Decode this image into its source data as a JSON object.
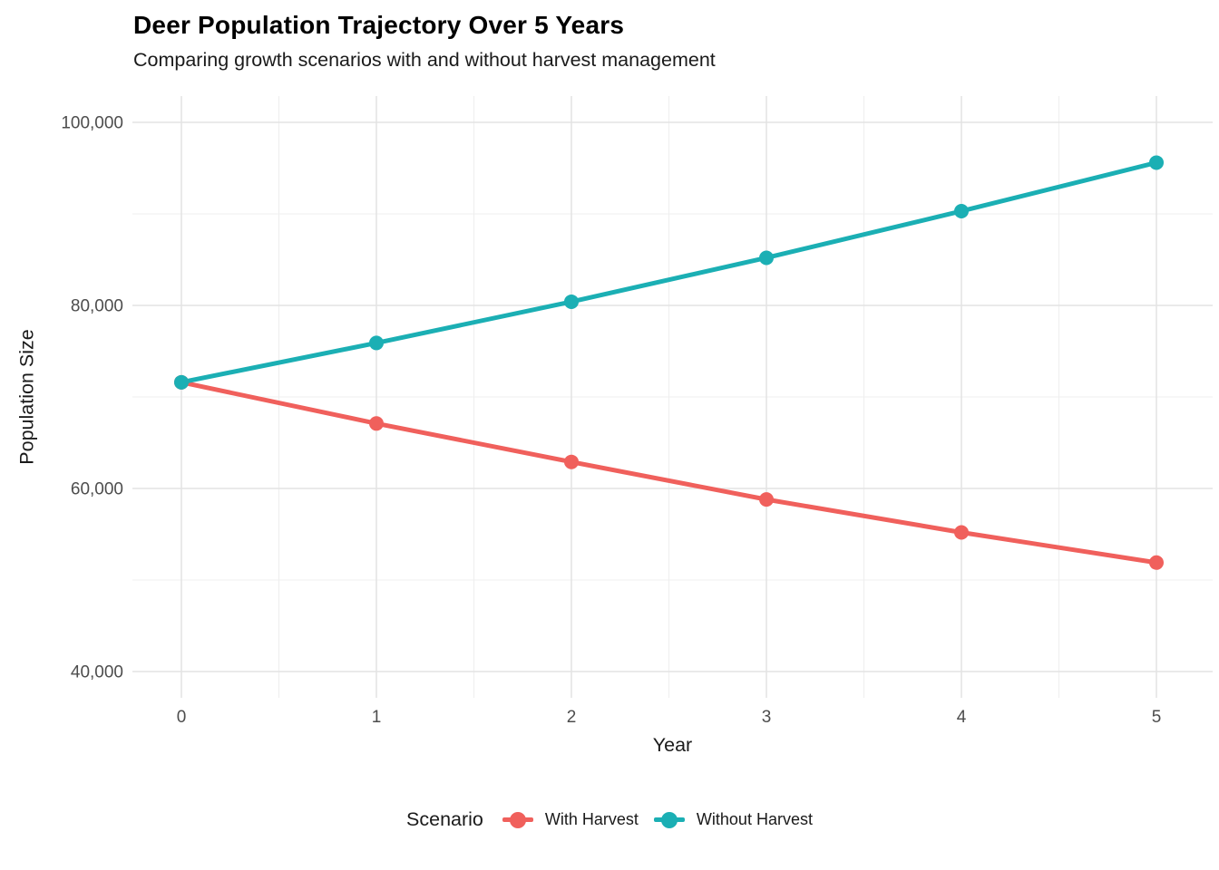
{
  "chart_data": {
    "type": "line",
    "title": "Deer Population Trajectory Over 5 Years",
    "subtitle": "Comparing growth scenarios with and without harvest management",
    "xlabel": "Year",
    "ylabel": "Population Size",
    "x": [
      0,
      1,
      2,
      3,
      4,
      5
    ],
    "series": [
      {
        "name": "With Harvest",
        "color": "#F0605C",
        "values": [
          71600,
          67100,
          62900,
          58800,
          55200,
          51900
        ]
      },
      {
        "name": "Without Harvest",
        "color": "#1BAFB4",
        "values": [
          71600,
          75900,
          80400,
          85200,
          90300,
          95600
        ]
      }
    ],
    "xlim": [
      0,
      5
    ],
    "ylim": [
      40000,
      100000
    ],
    "xticks": [
      0,
      1,
      2,
      3,
      4,
      5
    ],
    "xtick_labels": [
      "0",
      "1",
      "2",
      "3",
      "4",
      "5"
    ],
    "yticks": [
      40000,
      60000,
      80000,
      100000
    ],
    "ytick_labels": [
      "40,000",
      "60,000",
      "80,000",
      "100,000"
    ],
    "yminor": [
      50000,
      70000,
      90000
    ],
    "legend": {
      "title": "Scenario",
      "position": "bottom"
    },
    "grid": true,
    "colors": {
      "grid_major": "#E4E4E4",
      "grid_minor": "#EFEFEF",
      "tick_label": "#4D4D4D",
      "text": "#1A1A1A",
      "background": "#FFFFFF"
    }
  }
}
